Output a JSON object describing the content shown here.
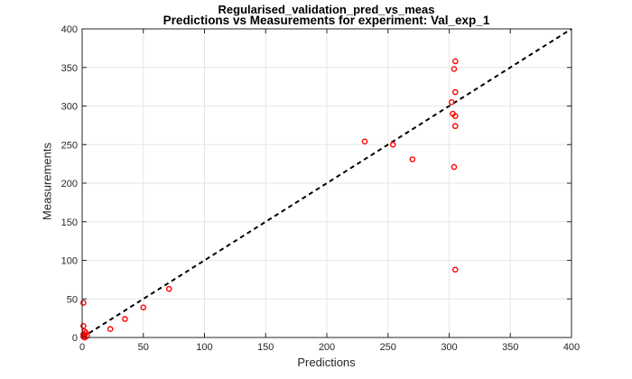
{
  "chart_data": {
    "type": "scatter",
    "title": "Regularised_validation_pred_vs_meas",
    "subtitle": "Predictions vs Measurements for experiment: Val_exp_1",
    "xlabel": "Predictions",
    "ylabel": "Measurements",
    "xlim": [
      0,
      400
    ],
    "ylim": [
      0,
      400
    ],
    "xticks": [
      0,
      50,
      100,
      150,
      200,
      250,
      300,
      350,
      400
    ],
    "yticks": [
      0,
      50,
      100,
      150,
      200,
      250,
      300,
      350,
      400
    ],
    "grid": true,
    "marker_color": "#ff0000",
    "reference_line": {
      "x": [
        0,
        400
      ],
      "y": [
        0,
        400
      ],
      "style": "dashed",
      "color": "#000000"
    },
    "series": [
      {
        "x": [
          305,
          304,
          305,
          302,
          303,
          305,
          305,
          254,
          231,
          270,
          304,
          305,
          71,
          50,
          35,
          23,
          1,
          1,
          2,
          3,
          1,
          2,
          4,
          1,
          2
        ],
        "y": [
          358,
          348,
          318,
          305,
          290,
          287,
          274,
          250,
          254,
          231,
          221,
          88,
          63,
          39,
          24,
          11,
          45,
          15,
          8,
          6,
          4,
          3,
          2,
          1,
          0
        ]
      }
    ]
  }
}
